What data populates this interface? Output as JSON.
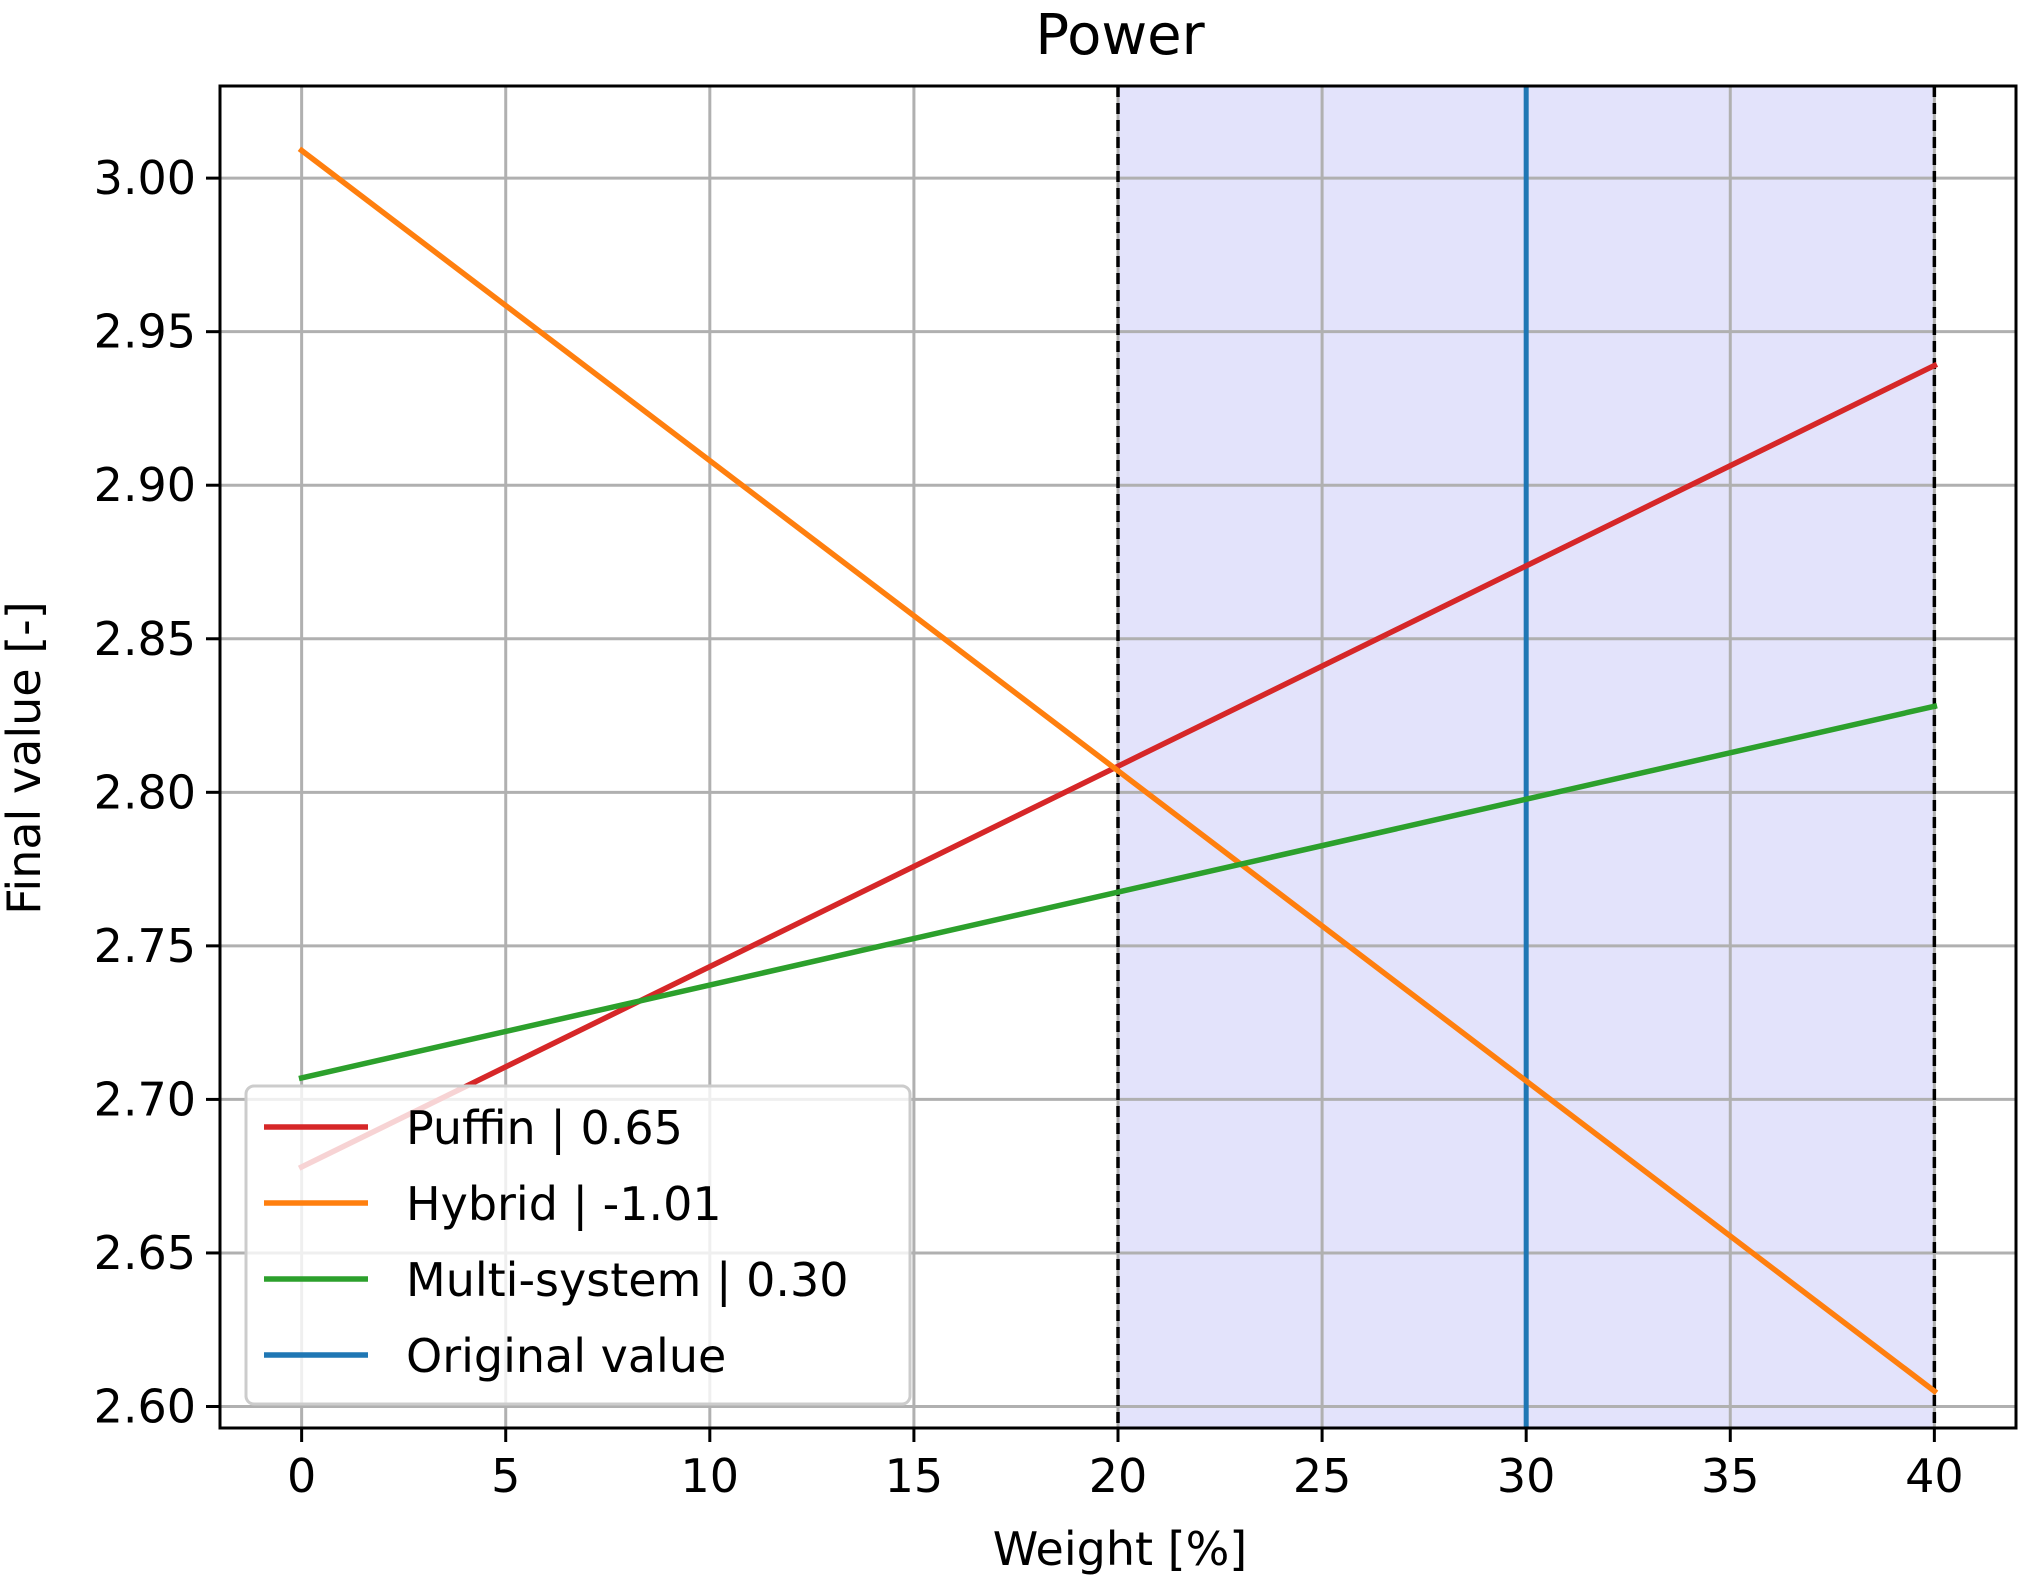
{
  "chart_data": {
    "type": "line",
    "title": "Power",
    "xlabel": "Weight [%]",
    "ylabel": "Final value [-]",
    "xlim": [
      -2,
      42
    ],
    "ylim": [
      2.593,
      3.03
    ],
    "xticks": [
      0,
      5,
      10,
      15,
      20,
      25,
      30,
      35,
      40
    ],
    "yticks": [
      2.6,
      2.65,
      2.7,
      2.75,
      2.8,
      2.85,
      2.9,
      2.95,
      3.0
    ],
    "xtick_labels": [
      "0",
      "5",
      "10",
      "15",
      "20",
      "25",
      "30",
      "35",
      "40"
    ],
    "ytick_labels": [
      "2.60",
      "2.65",
      "2.70",
      "2.75",
      "2.80",
      "2.85",
      "2.90",
      "2.95",
      "3.00"
    ],
    "grid": true,
    "shaded_region": {
      "x": [
        20,
        40
      ],
      "color": "#e3e3fb"
    },
    "boundary_lines": [
      20,
      40
    ],
    "reference_line": {
      "name": "Original value",
      "x": 30,
      "color": "#1f77b4"
    },
    "series": [
      {
        "name": "Puffin | 0.65",
        "color": "#d62728",
        "x": [
          0,
          40
        ],
        "y": [
          2.678,
          2.939
        ]
      },
      {
        "name": "Hybrid | -1.01",
        "color": "#ff7f0e",
        "x": [
          0,
          40
        ],
        "y": [
          3.009,
          2.605
        ]
      },
      {
        "name": "Multi-system | 0.30",
        "color": "#2ca02c",
        "x": [
          0,
          40
        ],
        "y": [
          2.707,
          2.828
        ]
      }
    ],
    "legend": {
      "position": "lower-left",
      "entries": [
        "Puffin | 0.65",
        "Hybrid | -1.01",
        "Multi-system | 0.30",
        "Original value"
      ]
    }
  }
}
